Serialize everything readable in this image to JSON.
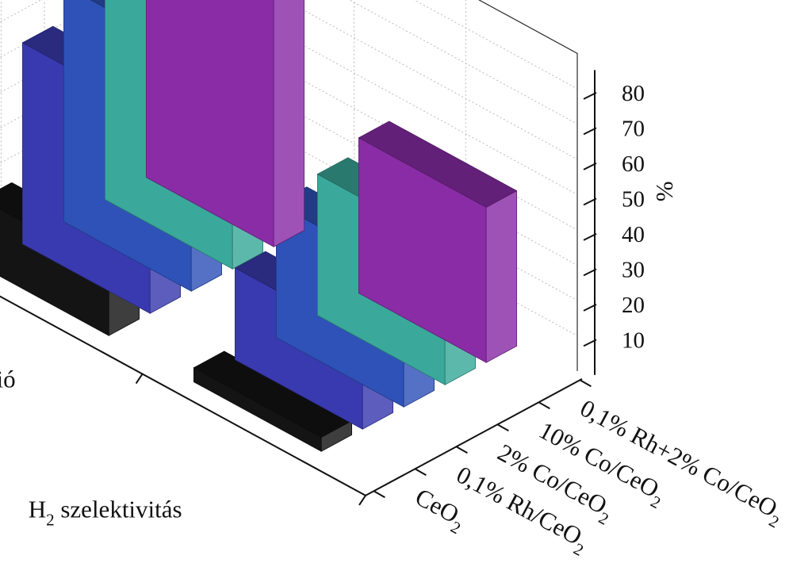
{
  "chart_data": {
    "type": "bar",
    "variant": "3d-grouped",
    "title": "",
    "zlabel": "%",
    "zlim": [
      0,
      90
    ],
    "zticks": [
      10,
      20,
      30,
      40,
      50,
      60,
      70,
      80
    ],
    "series": [
      {
        "name": "EtOH konverzió",
        "values": [
          19,
          57,
          67,
          73,
          88
        ]
      },
      {
        "name": "H_2 szelektivitás",
        "values": [
          4,
          26,
          38,
          40,
          44
        ]
      }
    ],
    "series_labels": [
      {
        "main": "EtOH konverzió",
        "sub": ""
      },
      {
        "main": "H",
        "sub": "2",
        "rest": " szelektivitás"
      }
    ],
    "categories": [
      "CeO_2",
      "0,1% Rh/CeO_2",
      "2% Co/CeO_2",
      "10% Co/CeO_2",
      "0,1% Rh+2% Co/CeO_2"
    ],
    "category_labels": [
      {
        "main": "CeO",
        "sub": "2"
      },
      {
        "main": "0,1% Rh/CeO",
        "sub": "2"
      },
      {
        "main": "2% Co/CeO",
        "sub": "2"
      },
      {
        "main": "10% Co/CeO",
        "sub": "2"
      },
      {
        "main": "0,1% Rh+2% Co/CeO",
        "sub": "2"
      }
    ],
    "colors": [
      "#141414",
      "#3a3ab0",
      "#2e52b8",
      "#3aa89a",
      "#8a2ca6"
    ]
  }
}
